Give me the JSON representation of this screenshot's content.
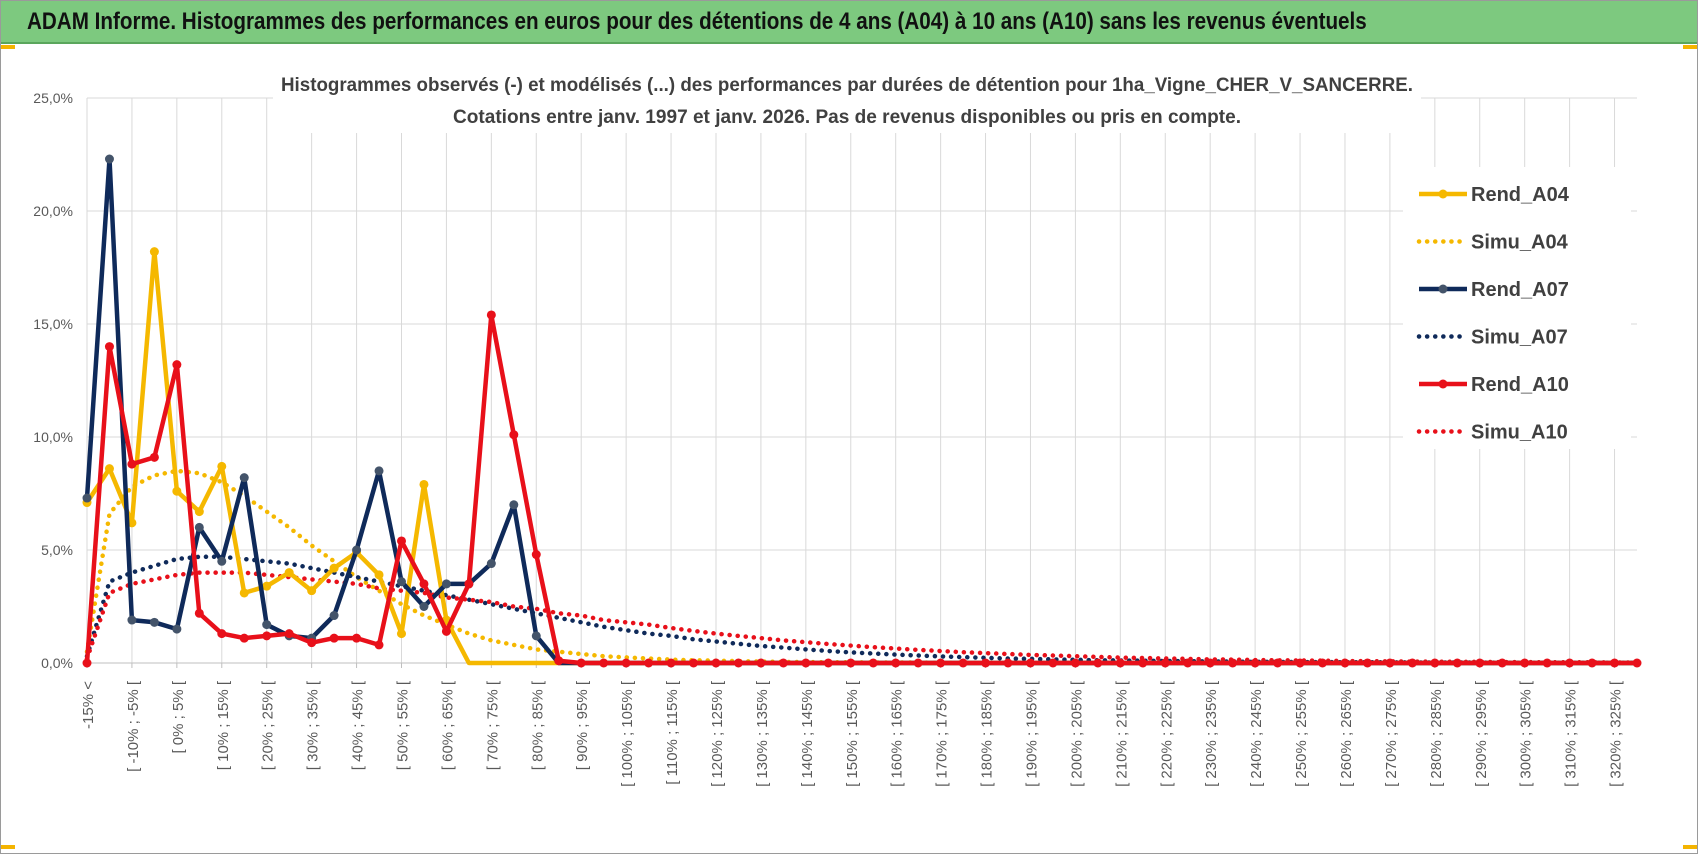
{
  "header": {
    "title": "ADAM Informe. Histogrammes des performances en euros pour des détentions de 4 ans (A04) à 10 ans (A10) sans les revenus éventuels",
    "background": "#7dc97f"
  },
  "chart_data": {
    "type": "line",
    "title_line1": "Histogrammes observés (-) et modélisés (...) des performances par durées de détention pour 1ha_Vigne_CHER_V_SANCERRE.",
    "title_line2": "Cotations entre janv. 1997 et janv. 2026. Pas de revenus disponibles ou pris en compte.",
    "ylim": [
      0,
      25
    ],
    "yticks": [
      "0,0%",
      "5,0%",
      "10,0%",
      "15,0%",
      "20,0%",
      "25,0%"
    ],
    "grid": true,
    "legend_position": "right",
    "categories": [
      "-15% <",
      "[ -15% ; -10% [",
      "[ -10% ; -5% [",
      "[ -5% ; 0% [",
      "[ 0% ; 5% [",
      "[ 5% ; 10% [",
      "[ 10% ; 15% [",
      "[ 15% ; 20% [",
      "[ 20% ; 25% [",
      "[ 25% ; 30% [",
      "[ 30% ; 35% [",
      "[ 35% ; 40% [",
      "[ 40% ; 45% [",
      "[ 45% ; 50% [",
      "[ 50% ; 55% [",
      "[ 55% ; 60% [",
      "[ 60% ; 65% [",
      "[ 65% ; 70% [",
      "[ 70% ; 75% [",
      "[ 75% ; 80% [",
      "[ 80% ; 85% [",
      "[ 85% ; 90% [",
      "[ 90% ; 95% [",
      "[ 95% ; 100% [",
      "[ 100% ; 105% [",
      "[ 105% ; 110% [",
      "[ 110% ; 115% [",
      "[ 115% ; 120% [",
      "[ 120% ; 125% [",
      "[ 125% ; 130% [",
      "[ 130% ; 135% [",
      "[ 135% ; 140% [",
      "[ 140% ; 145% [",
      "[ 145% ; 150% [",
      "[ 150% ; 155% [",
      "[ 155% ; 160% [",
      "[ 160% ; 165% [",
      "[ 165% ; 170% [",
      "[ 170% ; 175% [",
      "[ 175% ; 180% [",
      "[ 180% ; 185% [",
      "[ 185% ; 190% [",
      "[ 190% ; 195% [",
      "[ 195% ; 200% [",
      "[ 200% ; 205% [",
      "[ 205% ; 210% [",
      "[ 210% ; 215% [",
      "[ 215% ; 220% [",
      "[ 220% ; 225% [",
      "[ 225% ; 230% [",
      "[ 230% ; 235% [",
      "[ 235% ; 240% [",
      "[ 240% ; 245% [",
      "[ 245% ; 250% [",
      "[ 250% ; 255% [",
      "[ 255% ; 260% [",
      "[ 260% ; 265% [",
      "[ 265% ; 270% [",
      "[ 270% ; 275% [",
      "[ 275% ; 280% [",
      "[ 280% ; 285% [",
      "[ 285% ; 290% [",
      "[ 290% ; 295% [",
      "[ 295% ; 300% [",
      "[ 300% ; 305% [",
      "[ 305% ; 310% [",
      "[ 310% ; 315% [",
      "[ 315% ; 320% [",
      "[ 320% ; 325% [",
      "[ 325% ; 330% ["
    ],
    "xtick_labels_shown": [
      "-15% <",
      "[ -10% ; -5% [",
      "[ 0% ; 5% [",
      "[ 10% ; 15% [",
      "[ 20% ; 25% [",
      "[ 30% ; 35% [",
      "[ 40% ; 45% [",
      "[ 50% ; 55% [",
      "[ 60% ; 65% [",
      "[ 70% ; 75% [",
      "[ 80% ; 85% [",
      "[ 90% ; 95% [",
      "[ 100% ; 105% [",
      "[ 110% ; 115% [",
      "[ 120% ; 125% [",
      "[ 130% ; 135% [",
      "[ 140% ; 145% [",
      "[ 150% ; 155% [",
      "[ 160% ; 165% [",
      "[ 170% ; 175% [",
      "[ 180% ; 185% [",
      "[ 190% ; 195% [",
      "[ 200% ; 205% [",
      "[ 210% ; 215% [",
      "[ 220% ; 225% [",
      "[ 230% ; 235% [",
      "[ 240% ; 245% [",
      "[ 250% ; 255% [",
      "[ 260% ; 265% [",
      "[ 270% ; 275% [",
      "[ 280% ; 285% [",
      "[ 290% ; 295% [",
      "[ 300% ; 305% [",
      "[ 310% ; 315% [",
      "[ 320% ; 325% ["
    ],
    "series": [
      {
        "name": "Rend_A04",
        "color": "#f5b800",
        "style": "solid",
        "values": [
          7.1,
          8.6,
          6.2,
          18.2,
          7.6,
          6.7,
          8.7,
          3.1,
          3.4,
          4.0,
          3.2,
          4.2,
          4.9,
          3.9,
          1.3,
          7.9,
          1.9,
          0,
          0,
          0,
          0,
          0,
          0,
          0,
          0,
          0,
          0,
          0,
          0,
          0,
          0,
          0,
          0,
          0,
          0,
          0,
          0,
          0,
          0,
          0,
          0,
          0,
          0,
          0,
          0,
          0,
          0,
          0,
          0,
          0,
          0,
          0,
          0,
          0,
          0,
          0,
          0,
          0,
          0,
          0,
          0,
          0,
          0,
          0,
          0,
          0,
          0,
          0,
          0,
          0
        ]
      },
      {
        "name": "Simu_A04",
        "color": "#f5b800",
        "style": "dotted",
        "values": [
          0.5,
          6.6,
          7.8,
          8.3,
          8.5,
          8.4,
          8.0,
          7.4,
          6.7,
          6.0,
          5.2,
          4.5,
          3.8,
          3.2,
          2.6,
          2.1,
          1.7,
          1.3,
          1.0,
          0.8,
          0.6,
          0.5,
          0.4,
          0.3,
          0.25,
          0.2,
          0.15,
          0.12,
          0.1,
          0.08,
          0.06,
          0.05,
          0.04,
          0.03,
          0.03,
          0.02,
          0.02,
          0.02,
          0.01,
          0.01,
          0.01,
          0.01,
          0.01,
          0.01,
          0,
          0,
          0,
          0,
          0,
          0,
          0,
          0,
          0,
          0,
          0,
          0,
          0,
          0,
          0,
          0,
          0,
          0,
          0,
          0,
          0,
          0,
          0,
          0,
          0,
          0
        ]
      },
      {
        "name": "Rend_A07",
        "color": "#0f2a5a",
        "style": "solid",
        "values": [
          7.3,
          22.3,
          1.9,
          1.8,
          1.5,
          6.0,
          4.5,
          8.2,
          1.7,
          1.2,
          1.1,
          2.1,
          5.0,
          8.5,
          3.6,
          2.5,
          3.5,
          3.5,
          4.4,
          7.0,
          1.2,
          0,
          0,
          0,
          0,
          0,
          0,
          0,
          0,
          0,
          0,
          0,
          0,
          0,
          0,
          0,
          0,
          0,
          0,
          0,
          0,
          0,
          0,
          0,
          0,
          0,
          0,
          0,
          0,
          0,
          0,
          0,
          0,
          0,
          0,
          0,
          0,
          0,
          0,
          0,
          0,
          0,
          0,
          0,
          0,
          0,
          0,
          0,
          0,
          0
        ]
      },
      {
        "name": "Simu_A07",
        "color": "#0f2a5a",
        "style": "dotted",
        "values": [
          0.3,
          3.6,
          4.0,
          4.3,
          4.6,
          4.7,
          4.7,
          4.6,
          4.5,
          4.4,
          4.2,
          4.0,
          3.8,
          3.6,
          3.4,
          3.2,
          3.0,
          2.8,
          2.6,
          2.4,
          2.2,
          2.0,
          1.8,
          1.6,
          1.45,
          1.3,
          1.2,
          1.05,
          0.95,
          0.85,
          0.75,
          0.68,
          0.6,
          0.53,
          0.47,
          0.42,
          0.37,
          0.33,
          0.29,
          0.26,
          0.23,
          0.2,
          0.18,
          0.16,
          0.14,
          0.12,
          0.11,
          0.1,
          0.09,
          0.08,
          0.07,
          0.06,
          0.05,
          0.05,
          0.04,
          0.04,
          0.03,
          0.03,
          0.03,
          0.02,
          0.02,
          0.02,
          0.02,
          0.01,
          0.01,
          0.01,
          0.01,
          0.01,
          0.01,
          0.01
        ]
      },
      {
        "name": "Rend_A10",
        "color": "#e8101a",
        "style": "solid",
        "values": [
          0,
          14.0,
          8.8,
          9.1,
          13.2,
          2.2,
          1.3,
          1.1,
          1.2,
          1.3,
          0.9,
          1.1,
          1.1,
          0.8,
          5.4,
          3.5,
          1.4,
          3.5,
          15.4,
          10.1,
          4.8,
          0.1,
          0,
          0,
          0,
          0,
          0,
          0,
          0,
          0,
          0,
          0,
          0,
          0,
          0,
          0,
          0,
          0,
          0,
          0,
          0,
          0,
          0,
          0,
          0,
          0,
          0,
          0,
          0,
          0,
          0,
          0,
          0,
          0,
          0,
          0,
          0,
          0,
          0,
          0,
          0,
          0,
          0,
          0,
          0,
          0,
          0,
          0,
          0,
          0
        ]
      },
      {
        "name": "Simu_A10",
        "color": "#e8101a",
        "style": "dotted",
        "values": [
          0.2,
          3.1,
          3.5,
          3.7,
          3.9,
          4.0,
          4.0,
          4.0,
          3.9,
          3.8,
          3.7,
          3.6,
          3.5,
          3.3,
          3.2,
          3.1,
          2.9,
          2.8,
          2.7,
          2.5,
          2.4,
          2.2,
          2.1,
          1.9,
          1.8,
          1.7,
          1.55,
          1.42,
          1.3,
          1.2,
          1.1,
          1.0,
          0.92,
          0.84,
          0.77,
          0.7,
          0.64,
          0.58,
          0.53,
          0.48,
          0.44,
          0.4,
          0.36,
          0.33,
          0.3,
          0.27,
          0.24,
          0.22,
          0.2,
          0.18,
          0.16,
          0.15,
          0.13,
          0.12,
          0.11,
          0.1,
          0.09,
          0.08,
          0.07,
          0.06,
          0.06,
          0.05,
          0.05,
          0.04,
          0.04,
          0.03,
          0.03,
          0.03,
          0.02,
          0.02
        ]
      }
    ]
  }
}
